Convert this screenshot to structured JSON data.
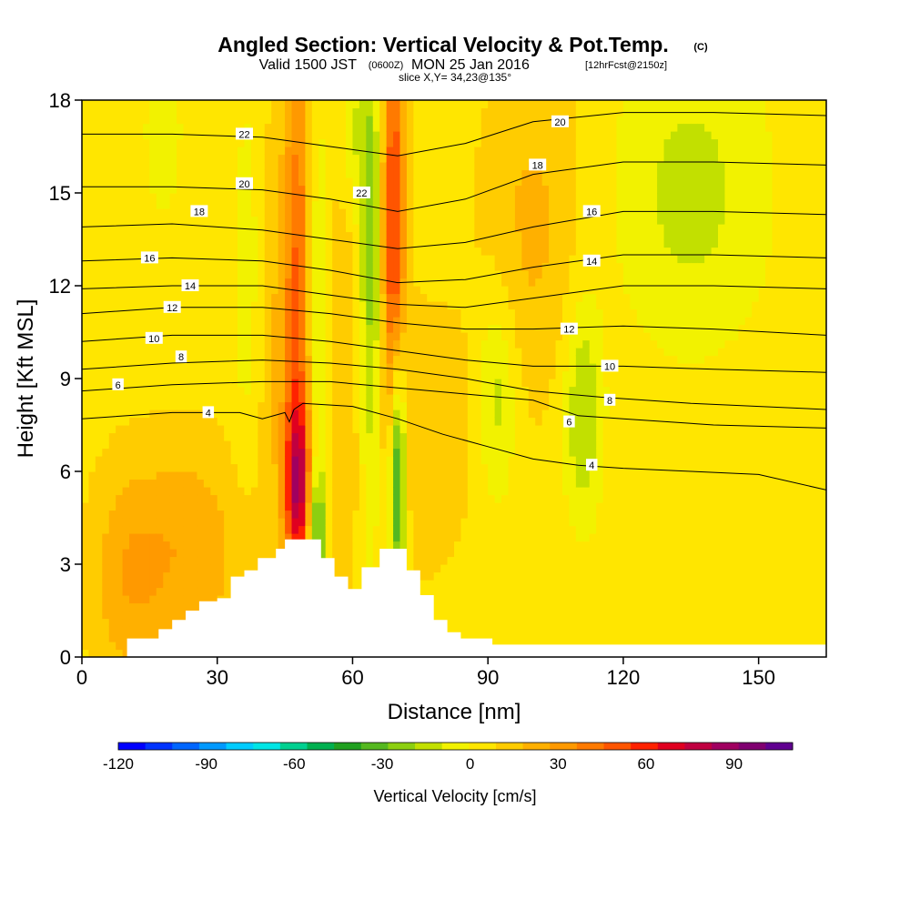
{
  "title": {
    "main": "Angled Section: Vertical Velocity & Pot.Temp.",
    "units_tag": "(C)",
    "valid_prefix": "Valid 1500 JST",
    "valid_utc": "(0600Z)",
    "valid_date": "MON 25 Jan 2016",
    "forecast": "[12hrFcst@2150z]",
    "slice": "slice X,Y= 34,23@135°"
  },
  "chart_data": {
    "type": "heatmap",
    "xlabel": "Distance [nm]",
    "ylabel": "Height [Kft MSL]",
    "xlim": [
      0,
      165
    ],
    "ylim": [
      0,
      18
    ],
    "x_ticks": [
      0,
      30,
      60,
      90,
      120,
      150
    ],
    "y_ticks": [
      0,
      3,
      6,
      9,
      12,
      15,
      18
    ],
    "colorbar": {
      "title": "Vertical Velocity [cm/s]",
      "range": [
        -120,
        110
      ],
      "ticks": [
        -120,
        -90,
        -60,
        -30,
        0,
        30,
        60,
        90
      ],
      "colors": [
        "#0000ff",
        "#0033ff",
        "#0066ff",
        "#0099ff",
        "#00ccff",
        "#00e5e5",
        "#00d090",
        "#00b050",
        "#20a020",
        "#55b820",
        "#8ccf10",
        "#c2e000",
        "#f2f200",
        "#ffe600",
        "#ffcc00",
        "#ffb000",
        "#ff9900",
        "#ff7a00",
        "#ff5500",
        "#ff2200",
        "#e00020",
        "#c00040",
        "#a00060",
        "#800070",
        "#600090"
      ]
    },
    "background_value": 5,
    "velocity_features": [
      {
        "x": 48,
        "y": 5.5,
        "sx": 2.2,
        "sy": 2.0,
        "value": 60
      },
      {
        "x": 48,
        "y": 12,
        "sx": 2.2,
        "sy": 6,
        "value": 40
      },
      {
        "x": 69,
        "y": 14,
        "sx": 1.8,
        "sy": 4.5,
        "value": 55
      },
      {
        "x": 24,
        "y": 3.5,
        "sx": 9,
        "sy": 2.5,
        "value": 20
      },
      {
        "x": 10,
        "y": 2.5,
        "sx": 6,
        "sy": 2.5,
        "value": 18
      },
      {
        "x": 42,
        "y": 11,
        "sx": 4,
        "sy": 5,
        "value": 12
      },
      {
        "x": 57,
        "y": 10,
        "sx": 4,
        "sy": 7,
        "value": 12
      },
      {
        "x": 100,
        "y": 14,
        "sx": 8,
        "sy": 4,
        "value": 15
      },
      {
        "x": 75,
        "y": 7,
        "sx": 8,
        "sy": 3,
        "value": 12
      },
      {
        "x": 37,
        "y": 12,
        "sx": 2.5,
        "sy": 4.5,
        "value": -15
      },
      {
        "x": 52,
        "y": 10,
        "sx": 2.0,
        "sy": 6,
        "value": -25
      },
      {
        "x": 52,
        "y": 4,
        "sx": 1.5,
        "sy": 1.5,
        "value": -35
      },
      {
        "x": 64,
        "y": 12,
        "sx": 2.0,
        "sy": 6,
        "value": -30
      },
      {
        "x": 70,
        "y": 6,
        "sx": 1.3,
        "sy": 2.8,
        "value": -60
      },
      {
        "x": 92,
        "y": 8.5,
        "sx": 3,
        "sy": 2.5,
        "value": -20
      },
      {
        "x": 111,
        "y": 8,
        "sx": 3,
        "sy": 2.5,
        "value": -25
      },
      {
        "x": 135,
        "y": 15,
        "sx": 12,
        "sy": 3.5,
        "value": -18
      },
      {
        "x": 18,
        "y": 17,
        "sx": 3,
        "sy": 2,
        "value": -12
      },
      {
        "x": 60,
        "y": 17,
        "sx": 3,
        "sy": 2,
        "value": -15
      }
    ],
    "terrain_profile": [
      [
        10,
        0.6
      ],
      [
        17,
        0.9
      ],
      [
        20,
        1.2
      ],
      [
        23,
        1.5
      ],
      [
        26,
        1.8
      ],
      [
        30,
        1.9
      ],
      [
        33,
        2.6
      ],
      [
        36,
        2.8
      ],
      [
        39,
        3.2
      ],
      [
        43,
        3.5
      ],
      [
        45,
        3.8
      ],
      [
        49,
        3.8
      ],
      [
        51,
        3.8
      ],
      [
        53,
        3.2
      ],
      [
        56,
        2.6
      ],
      [
        59,
        2.2
      ],
      [
        62,
        2.9
      ],
      [
        66,
        3.5
      ],
      [
        70,
        3.5
      ],
      [
        72,
        2.8
      ],
      [
        75,
        2.0
      ],
      [
        78,
        1.2
      ],
      [
        81,
        0.8
      ],
      [
        84,
        0.6
      ],
      [
        91,
        0.4
      ],
      [
        165,
        0.4
      ]
    ],
    "theta_contours": [
      {
        "label": "4",
        "points": [
          [
            0,
            7.7
          ],
          [
            20,
            7.9
          ],
          [
            35,
            7.9
          ],
          [
            40,
            7.7
          ],
          [
            45,
            7.9
          ],
          [
            46,
            7.6
          ],
          [
            47,
            8.0
          ],
          [
            49,
            8.2
          ],
          [
            60,
            8.1
          ],
          [
            70,
            7.7
          ],
          [
            80,
            7.2
          ],
          [
            90,
            6.8
          ],
          [
            100,
            6.4
          ],
          [
            110,
            6.2
          ],
          [
            120,
            6.1
          ],
          [
            135,
            6.0
          ],
          [
            150,
            5.9
          ],
          [
            165,
            5.4
          ]
        ],
        "label_at": [
          28,
          7.9
        ],
        "label2_at": [
          113,
          6.2
        ]
      },
      {
        "label": "6",
        "points": [
          [
            0,
            8.6
          ],
          [
            20,
            8.8
          ],
          [
            40,
            8.9
          ],
          [
            55,
            8.9
          ],
          [
            70,
            8.7
          ],
          [
            85,
            8.5
          ],
          [
            100,
            8.3
          ],
          [
            110,
            7.8
          ],
          [
            120,
            7.7
          ],
          [
            140,
            7.5
          ],
          [
            165,
            7.4
          ]
        ],
        "label_at": [
          8,
          8.8
        ],
        "label2_at": [
          108,
          7.6
        ]
      },
      {
        "label": "8",
        "points": [
          [
            0,
            9.3
          ],
          [
            20,
            9.5
          ],
          [
            40,
            9.6
          ],
          [
            55,
            9.5
          ],
          [
            70,
            9.3
          ],
          [
            85,
            9.0
          ],
          [
            100,
            8.6
          ],
          [
            115,
            8.4
          ],
          [
            135,
            8.2
          ],
          [
            165,
            8.0
          ]
        ],
        "label_at": [
          22,
          9.7
        ],
        "label2_at": [
          117,
          8.3
        ]
      },
      {
        "label": "10",
        "points": [
          [
            0,
            10.2
          ],
          [
            20,
            10.4
          ],
          [
            40,
            10.4
          ],
          [
            55,
            10.2
          ],
          [
            70,
            9.9
          ],
          [
            85,
            9.6
          ],
          [
            100,
            9.4
          ],
          [
            120,
            9.4
          ],
          [
            140,
            9.3
          ],
          [
            165,
            9.2
          ]
        ],
        "label_at": [
          16,
          10.3
        ],
        "label2_at": [
          117,
          9.4
        ]
      },
      {
        "label": "12",
        "points": [
          [
            0,
            11.1
          ],
          [
            20,
            11.3
          ],
          [
            40,
            11.3
          ],
          [
            55,
            11.1
          ],
          [
            70,
            10.8
          ],
          [
            85,
            10.6
          ],
          [
            100,
            10.6
          ],
          [
            120,
            10.7
          ],
          [
            140,
            10.6
          ],
          [
            165,
            10.4
          ]
        ],
        "label_at": [
          20,
          11.3
        ],
        "label2_at": [
          108,
          10.6
        ]
      },
      {
        "label": "14",
        "points": [
          [
            0,
            11.9
          ],
          [
            20,
            12.0
          ],
          [
            40,
            12.0
          ],
          [
            55,
            11.7
          ],
          [
            70,
            11.4
          ],
          [
            85,
            11.3
          ],
          [
            100,
            11.6
          ],
          [
            120,
            12.0
          ],
          [
            140,
            12.0
          ],
          [
            165,
            11.9
          ]
        ],
        "label_at": [
          24,
          12.0
        ],
        "label2_at": [
          113,
          12.8
        ]
      },
      {
        "label": "16",
        "points": [
          [
            0,
            12.8
          ],
          [
            20,
            12.9
          ],
          [
            40,
            12.8
          ],
          [
            55,
            12.5
          ],
          [
            70,
            12.1
          ],
          [
            85,
            12.2
          ],
          [
            100,
            12.6
          ],
          [
            120,
            13.0
          ],
          [
            140,
            13.0
          ],
          [
            165,
            12.9
          ]
        ],
        "label_at": [
          15,
          12.9
        ],
        "label2_at": [
          113,
          14.4
        ]
      },
      {
        "label": "18",
        "points": [
          [
            0,
            13.9
          ],
          [
            20,
            14.0
          ],
          [
            40,
            13.8
          ],
          [
            55,
            13.5
          ],
          [
            70,
            13.2
          ],
          [
            85,
            13.4
          ],
          [
            100,
            13.9
          ],
          [
            120,
            14.4
          ],
          [
            140,
            14.4
          ],
          [
            165,
            14.3
          ]
        ],
        "label_at": [
          26,
          14.4
        ],
        "label2_at": [
          101,
          15.9
        ]
      },
      {
        "label": "20",
        "points": [
          [
            0,
            15.2
          ],
          [
            20,
            15.2
          ],
          [
            40,
            15.1
          ],
          [
            55,
            14.8
          ],
          [
            70,
            14.4
          ],
          [
            85,
            14.8
          ],
          [
            100,
            15.6
          ],
          [
            120,
            16.0
          ],
          [
            140,
            16.0
          ],
          [
            165,
            15.9
          ]
        ],
        "label_at": [
          36,
          15.3
        ],
        "label2_at": [
          106,
          17.3
        ]
      },
      {
        "label": "22",
        "points": [
          [
            0,
            16.9
          ],
          [
            20,
            16.9
          ],
          [
            40,
            16.8
          ],
          [
            55,
            16.5
          ],
          [
            70,
            16.2
          ],
          [
            85,
            16.6
          ],
          [
            100,
            17.3
          ],
          [
            120,
            17.6
          ],
          [
            140,
            17.6
          ],
          [
            165,
            17.5
          ]
        ],
        "label_at": [
          36,
          16.9
        ],
        "label2_at": [
          62,
          15.0
        ]
      }
    ]
  }
}
